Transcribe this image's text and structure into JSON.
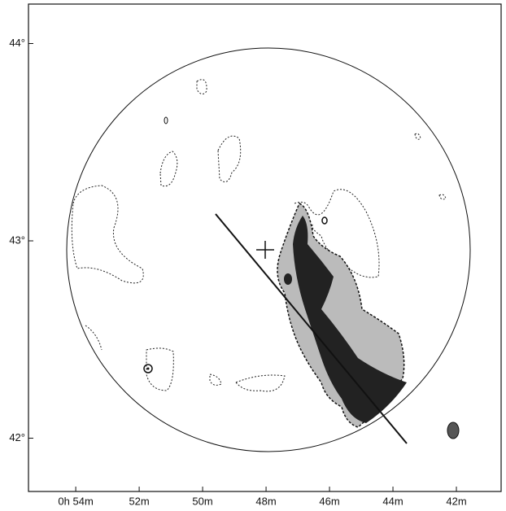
{
  "chart_data": {
    "type": "sky-map",
    "xlim": [
      55.49,
      40.59
    ],
    "ylim": [
      41.73,
      44.2
    ],
    "xticks": [
      {
        "value": 54,
        "label": "0h 54m"
      },
      {
        "value": 52,
        "label": "52m"
      },
      {
        "value": 50,
        "label": "50m"
      },
      {
        "value": 48,
        "label": "48m"
      },
      {
        "value": 46,
        "label": "46m"
      },
      {
        "value": 44,
        "label": "44m"
      },
      {
        "value": 42,
        "label": "42m"
      }
    ],
    "yticks": [
      {
        "value": 44,
        "label": "44°"
      },
      {
        "value": 43,
        "label": "43°"
      },
      {
        "value": 42,
        "label": "42°"
      }
    ]
  }
}
